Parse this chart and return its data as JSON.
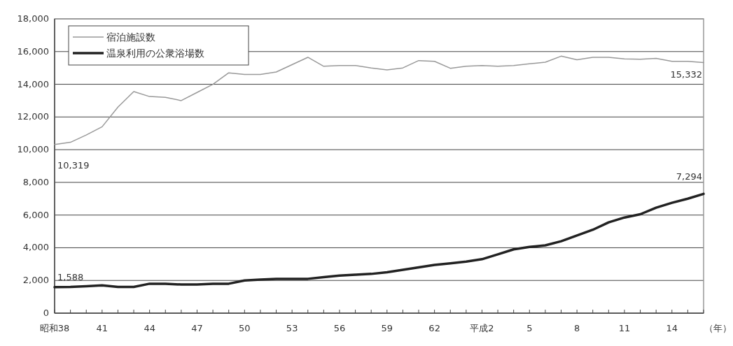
{
  "chart_data": {
    "type": "line",
    "xlabel": "（年）",
    "categories": [
      "昭和38",
      null,
      null,
      "41",
      null,
      null,
      "44",
      null,
      null,
      "47",
      null,
      null,
      "50",
      null,
      null,
      "53",
      null,
      null,
      "56",
      null,
      null,
      "59",
      null,
      null,
      "62",
      null,
      null,
      "平成2",
      null,
      null,
      "5",
      null,
      null,
      "8",
      null,
      null,
      "11",
      null,
      null,
      "14",
      null,
      null
    ],
    "series": [
      {
        "name": "宿泊施設数",
        "color": "#999999",
        "values": [
          10319,
          10450,
          10900,
          11400,
          12600,
          13550,
          13250,
          13200,
          13000,
          13500,
          14000,
          14700,
          14600,
          14600,
          14750,
          15200,
          15650,
          15100,
          15150,
          15150,
          15000,
          14880,
          15000,
          15450,
          15400,
          14980,
          15100,
          15150,
          15100,
          15150,
          15250,
          15350,
          15720,
          15500,
          15650,
          15650,
          15550,
          15530,
          15580,
          15400,
          15400,
          15332
        ],
        "value_labels": [
          "10,319",
          null,
          null,
          null,
          null,
          null,
          null,
          null,
          null,
          null,
          null,
          null,
          null,
          null,
          null,
          null,
          null,
          null,
          null,
          null,
          null,
          null,
          null,
          null,
          null,
          null,
          null,
          null,
          null,
          null,
          null,
          null,
          null,
          null,
          null,
          null,
          null,
          null,
          null,
          null,
          null,
          "15,332"
        ]
      },
      {
        "name": "温泉利用の公衆浴場数",
        "color": "#222222",
        "values": [
          1588,
          1600,
          1650,
          1700,
          1600,
          1600,
          1800,
          1800,
          1750,
          1750,
          1800,
          1800,
          2000,
          2050,
          2100,
          2100,
          2100,
          2200,
          2300,
          2350,
          2400,
          2500,
          2650,
          2800,
          2950,
          3050,
          3150,
          3300,
          3600,
          3900,
          4050,
          4150,
          4400,
          4750,
          5100,
          5550,
          5850,
          6050,
          6450,
          6750,
          7000,
          7294
        ],
        "value_labels": [
          "1,588",
          null,
          null,
          null,
          null,
          null,
          null,
          null,
          null,
          null,
          null,
          null,
          null,
          null,
          null,
          null,
          null,
          null,
          null,
          null,
          null,
          null,
          null,
          null,
          null,
          null,
          null,
          null,
          null,
          null,
          null,
          null,
          null,
          null,
          null,
          null,
          null,
          null,
          null,
          null,
          null,
          "7,294"
        ]
      }
    ],
    "ylim": [
      0,
      18000
    ],
    "yticks": [
      0,
      {
        "value": 2000,
        "label": "2,000"
      },
      {
        "value": 4000,
        "label": "4,000"
      },
      {
        "value": 6000,
        "label": "6,000"
      },
      {
        "value": 8000,
        "label": "8,000"
      },
      {
        "value": 10000,
        "label": "10,000"
      },
      {
        "value": 12000,
        "label": "12,000"
      },
      {
        "value": 14000,
        "label": "14,000"
      },
      {
        "value": 16000,
        "label": "16,000"
      },
      {
        "value": 18000,
        "label": "18,000"
      }
    ],
    "grid": "y",
    "legend": "top left",
    "marker": "none",
    "line_style": "solid"
  }
}
